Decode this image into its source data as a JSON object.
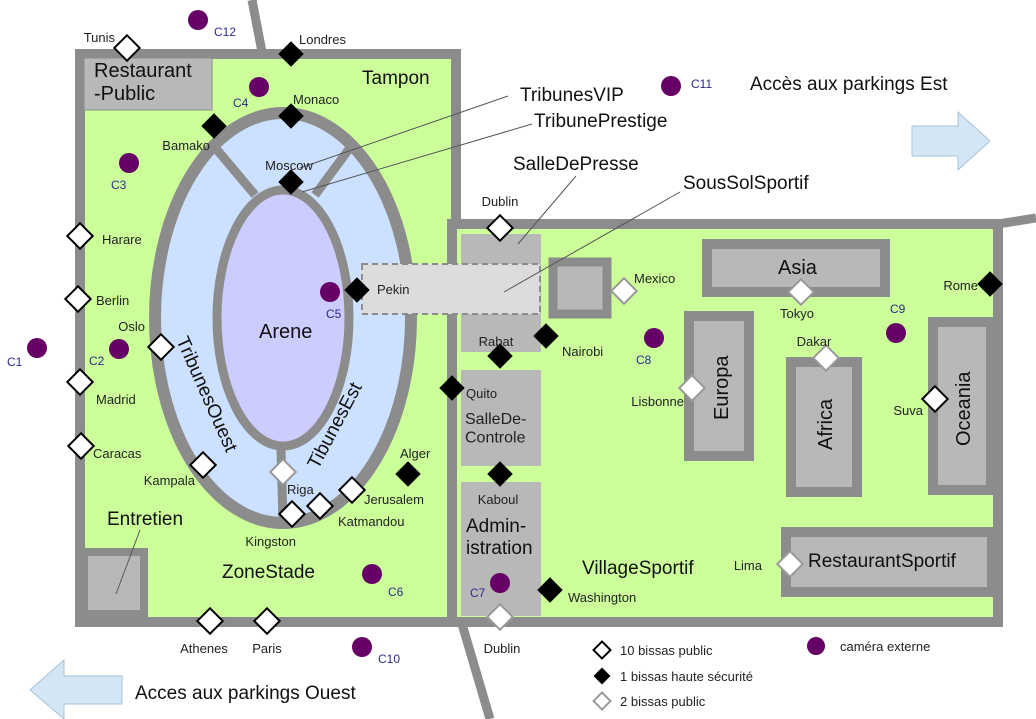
{
  "areas": {
    "restaurant_public": "Restaurant\n-Public",
    "tampon": "Tampon",
    "arene": "Arene",
    "tribunes_ouest": "TribunesOuest",
    "tibunes_est": "TibunesEst",
    "tribunes_vip": "TribunesVIP",
    "tribune_prestige": "TribunePrestige",
    "salle_de_presse": "SalleDePresse",
    "sous_sol_sportif": "SousSolSportif",
    "salle_de_controle": "SalleDe-\nControle",
    "administration": "Admin-\nistration",
    "entretien": "Entretien",
    "zone_stade": "ZoneStade",
    "village_sportif": "VillageSportif",
    "restaurant_sportif": "RestaurantSportif",
    "asia": "Asia",
    "europa": "Europa",
    "africa": "Africa",
    "oceania": "Oceania"
  },
  "access": {
    "east": "Accès aux parkings Est",
    "west": "Acces aux parkings Ouest"
  },
  "checkpoints": [
    {
      "id": "tunis",
      "label": "Tunis",
      "kind": "public10"
    },
    {
      "id": "londres",
      "label": "Londres",
      "kind": "high"
    },
    {
      "id": "monaco",
      "label": "Monaco",
      "kind": "high"
    },
    {
      "id": "bamako",
      "label": "Bamako",
      "kind": "high"
    },
    {
      "id": "moscow",
      "label": "Moscow",
      "kind": "high"
    },
    {
      "id": "harare",
      "label": "Harare",
      "kind": "public10"
    },
    {
      "id": "berlin",
      "label": "Berlin",
      "kind": "public10"
    },
    {
      "id": "oslo",
      "label": "Oslo",
      "kind": "public10"
    },
    {
      "id": "madrid",
      "label": "Madrid",
      "kind": "public10"
    },
    {
      "id": "caracas",
      "label": "Caracas",
      "kind": "public10"
    },
    {
      "id": "kampala",
      "label": "Kampala",
      "kind": "public10"
    },
    {
      "id": "riga",
      "label": "Riga",
      "kind": "public2"
    },
    {
      "id": "kingston",
      "label": "Kingston",
      "kind": "public10"
    },
    {
      "id": "katmandou",
      "label": "Katmandou",
      "kind": "public10"
    },
    {
      "id": "jerusalem",
      "label": "Jerusalem",
      "kind": "public10"
    },
    {
      "id": "alger",
      "label": "Alger",
      "kind": "high"
    },
    {
      "id": "pekin",
      "label": "Pekin",
      "kind": "high"
    },
    {
      "id": "dublin_n",
      "label": "Dublin",
      "kind": "public10"
    },
    {
      "id": "rabat",
      "label": "Rabat",
      "kind": "high"
    },
    {
      "id": "nairobi",
      "label": "Nairobi",
      "kind": "high"
    },
    {
      "id": "quito",
      "label": "Quito",
      "kind": "high"
    },
    {
      "id": "kaboul",
      "label": "Kaboul",
      "kind": "high"
    },
    {
      "id": "washington",
      "label": "Washington",
      "kind": "high"
    },
    {
      "id": "dublin_s",
      "label": "Dublin",
      "kind": "public2"
    },
    {
      "id": "athenes",
      "label": "Athenes",
      "kind": "public10"
    },
    {
      "id": "paris",
      "label": "Paris",
      "kind": "public10"
    },
    {
      "id": "mexico",
      "label": "Mexico",
      "kind": "public2"
    },
    {
      "id": "tokyo",
      "label": "Tokyo",
      "kind": "public2"
    },
    {
      "id": "dakar",
      "label": "Dakar",
      "kind": "public2"
    },
    {
      "id": "lisbonne",
      "label": "Lisbonne",
      "kind": "public2"
    },
    {
      "id": "suva",
      "label": "Suva",
      "kind": "public10"
    },
    {
      "id": "rome",
      "label": "Rome",
      "kind": "high"
    },
    {
      "id": "lima",
      "label": "Lima",
      "kind": "public2"
    }
  ],
  "cameras": [
    {
      "id": "c1",
      "label": "C1"
    },
    {
      "id": "c2",
      "label": "C2"
    },
    {
      "id": "c3",
      "label": "C3"
    },
    {
      "id": "c4",
      "label": "C4"
    },
    {
      "id": "c5",
      "label": "C5"
    },
    {
      "id": "c6",
      "label": "C6"
    },
    {
      "id": "c7",
      "label": "C7"
    },
    {
      "id": "c8",
      "label": "C8"
    },
    {
      "id": "c9",
      "label": "C9"
    },
    {
      "id": "c10",
      "label": "C10"
    },
    {
      "id": "c11",
      "label": "C11"
    },
    {
      "id": "c12",
      "label": "C12"
    }
  ],
  "legend": {
    "public10": "10 bissas public",
    "high": "1 bissas haute sécurité",
    "public2": "2 bissas public",
    "camera": "caméra externe"
  },
  "colors": {
    "wall": "#8c8c8c",
    "green": "#ccff99",
    "stands": "#cce0ff",
    "arena": "#ccccff",
    "building": "#b8b8b8",
    "camera": "#660066",
    "arrow": "#d4e6f5"
  }
}
